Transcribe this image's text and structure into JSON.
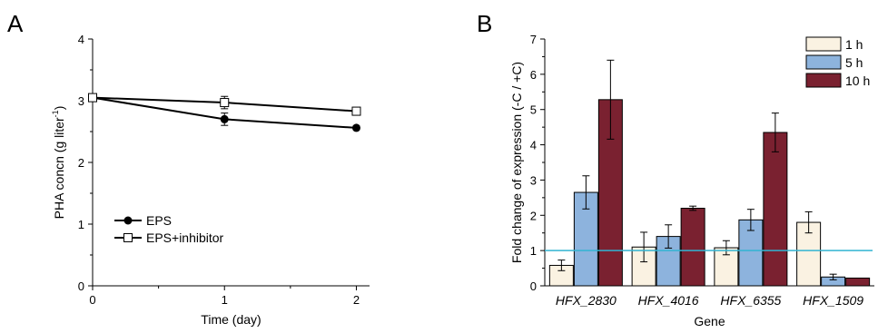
{
  "chart_data": [
    {
      "panel": "A",
      "type": "line",
      "x": [
        0,
        1,
        2
      ],
      "xlabel": "Time (day)",
      "ylabel_main": "PHA concn (g liter",
      "ylabel_sup": "-1",
      "ylabel_end": ")",
      "xlim": [
        0,
        2.1
      ],
      "ylim": [
        0,
        4
      ],
      "xticks": [
        "0",
        "1",
        "2"
      ],
      "yticks": [
        "0",
        "1",
        "2",
        "3",
        "4"
      ],
      "legend_position": "lower-left",
      "series": [
        {
          "name": "EPS",
          "marker": "filled-circle",
          "values": [
            3.05,
            2.7,
            2.56
          ],
          "errors": [
            0,
            0.1,
            0.03
          ]
        },
        {
          "name": "EPS+inhibitor",
          "marker": "open-square",
          "values": [
            3.05,
            2.97,
            2.83
          ],
          "errors": [
            0,
            0.1,
            0.05
          ]
        }
      ]
    },
    {
      "panel": "B",
      "type": "bar",
      "categories": [
        "HFX_2830",
        "HFX_4016",
        "HFX_6355",
        "HFX_1509"
      ],
      "xlabel": "Gene",
      "ylabel": "Fold change of expression (-C / +C)",
      "ylim": [
        0,
        7
      ],
      "yticks": [
        "0",
        "1",
        "2",
        "3",
        "4",
        "5",
        "6",
        "7"
      ],
      "reference_line": {
        "y": 1.0,
        "color": "#32b4d2"
      },
      "legend_position": "top-right",
      "series": [
        {
          "name": "1 h",
          "color": "#faf2e2",
          "values": [
            0.58,
            1.1,
            1.08,
            1.8
          ],
          "errors": [
            0.15,
            0.42,
            0.2,
            0.3
          ]
        },
        {
          "name": "5 h",
          "color": "#8db3dd",
          "values": [
            2.65,
            1.4,
            1.87,
            0.25
          ],
          "errors": [
            0.47,
            0.33,
            0.3,
            0.08
          ]
        },
        {
          "name": "10 h",
          "color": "#7a2130",
          "values": [
            5.28,
            2.2,
            4.35,
            0.22
          ],
          "errors": [
            1.12,
            0.06,
            0.55,
            0
          ]
        }
      ]
    }
  ],
  "labels": {
    "panelA": "A",
    "panelB": "B"
  }
}
